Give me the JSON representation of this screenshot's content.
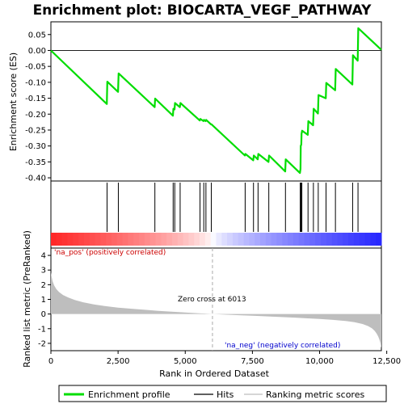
{
  "chart_data": {
    "type": "line",
    "title": "Enrichment plot: BIOCARTA_VEGF_PATHWAY",
    "es_panel": {
      "ylabel": "Enrichment score (ES)",
      "ylim": [
        -0.41,
        0.09
      ],
      "yticks": [
        0.05,
        0.0,
        -0.05,
        -0.1,
        -0.15,
        -0.2,
        -0.25,
        -0.3,
        -0.35,
        -0.4
      ],
      "ytick_labels": [
        "0.05",
        "0.00",
        "-0.05",
        "-0.10",
        "-0.15",
        "-0.20",
        "-0.25",
        "-0.30",
        "-0.35",
        "-0.40"
      ],
      "series_name": "Enrichment profile",
      "color": "#00dd00",
      "profile_x": [
        0,
        2080,
        2100,
        2500,
        2520,
        3860,
        3880,
        4540,
        4560,
        4600,
        4620,
        4800,
        4820,
        5540,
        5560,
        5680,
        5700,
        5760,
        5780,
        5960,
        5980,
        7220,
        7240,
        7530,
        7550,
        7700,
        7720,
        8100,
        8120,
        8720,
        8740,
        9270,
        9290,
        9300,
        9320,
        9330,
        9350,
        9560,
        9580,
        9760,
        9780,
        9940,
        9960,
        10230,
        10250,
        10580,
        10600,
        11220,
        11240,
        11420,
        11440,
        12300
      ],
      "profile_y": [
        0.0,
        -0.168,
        -0.098,
        -0.13,
        -0.072,
        -0.178,
        -0.151,
        -0.205,
        -0.183,
        -0.185,
        -0.165,
        -0.178,
        -0.165,
        -0.22,
        -0.215,
        -0.222,
        -0.218,
        -0.222,
        -0.218,
        -0.232,
        -0.232,
        -0.33,
        -0.325,
        -0.345,
        -0.33,
        -0.342,
        -0.325,
        -0.35,
        -0.33,
        -0.38,
        -0.342,
        -0.385,
        -0.372,
        -0.3,
        -0.295,
        -0.262,
        -0.252,
        -0.265,
        -0.222,
        -0.235,
        -0.183,
        -0.198,
        -0.14,
        -0.15,
        -0.102,
        -0.125,
        -0.058,
        -0.107,
        -0.015,
        -0.032,
        0.07,
        0.002
      ]
    },
    "hits_panel": {
      "series_name": "Hits",
      "hit_positions": [
        2090,
        2510,
        3870,
        4550,
        4610,
        4810,
        5550,
        5690,
        5770,
        5970,
        7230,
        7540,
        7710,
        8110,
        8730,
        9280,
        9310,
        9340,
        9570,
        9770,
        9950,
        10240,
        10590,
        11230,
        11430
      ]
    },
    "heatmap_bar": {
      "label_pos": "'na_pos' (positively correlated)",
      "label_neg": "'na_neg' (negatively correlated)",
      "pos_color": "#ff0000",
      "neg_color": "#0000ff"
    },
    "metric_panel": {
      "ylabel": "Ranked list metric (PreRanked)",
      "ylim": [
        -2.5,
        4.5
      ],
      "yticks": [
        4,
        3,
        2,
        1,
        0,
        -1,
        -2
      ],
      "ytick_labels": [
        "4",
        "3",
        "2",
        "1",
        "0",
        "-1",
        "-2"
      ],
      "series_name": "Ranking metric scores",
      "fill_color": "#bebebe",
      "zero_cross_label": "Zero cross at 6013",
      "zero_cross_x": 6013,
      "metric_x": [
        0,
        20,
        60,
        120,
        200,
        300,
        450,
        650,
        900,
        1200,
        1600,
        2000,
        2500,
        3000,
        3500,
        4000,
        4500,
        5000,
        5500,
        6013,
        6500,
        7000,
        7500,
        8000,
        8500,
        9000,
        9500,
        10000,
        10500,
        11000,
        11300,
        11600,
        11800,
        11950,
        12050,
        12120,
        12180,
        12220,
        12260,
        12290,
        12300
      ],
      "metric_y": [
        2.85,
        2.6,
        2.25,
        1.95,
        1.7,
        1.5,
        1.3,
        1.12,
        0.95,
        0.8,
        0.66,
        0.55,
        0.44,
        0.36,
        0.29,
        0.22,
        0.16,
        0.1,
        0.05,
        0.0,
        -0.04,
        -0.08,
        -0.12,
        -0.16,
        -0.2,
        -0.24,
        -0.29,
        -0.34,
        -0.4,
        -0.48,
        -0.56,
        -0.68,
        -0.82,
        -0.98,
        -1.15,
        -1.32,
        -1.52,
        -1.7,
        -1.95,
        -2.25,
        -2.3
      ]
    },
    "xaxis": {
      "label": "Rank in Ordered Dataset",
      "xlim": [
        0,
        12300
      ],
      "xticks": [
        0,
        2500,
        5000,
        7500,
        10000,
        12500
      ],
      "xtick_labels": [
        "0",
        "2,500",
        "5,000",
        "7,500",
        "10,000",
        "12,500"
      ]
    },
    "legend": {
      "placement": "bottom",
      "items": [
        {
          "label": "Enrichment profile",
          "color": "#00dd00",
          "kind": "thick-line"
        },
        {
          "label": "Hits",
          "color": "#000000",
          "kind": "line"
        },
        {
          "label": "Ranking metric scores",
          "color": "#bebebe",
          "kind": "line"
        }
      ]
    }
  }
}
